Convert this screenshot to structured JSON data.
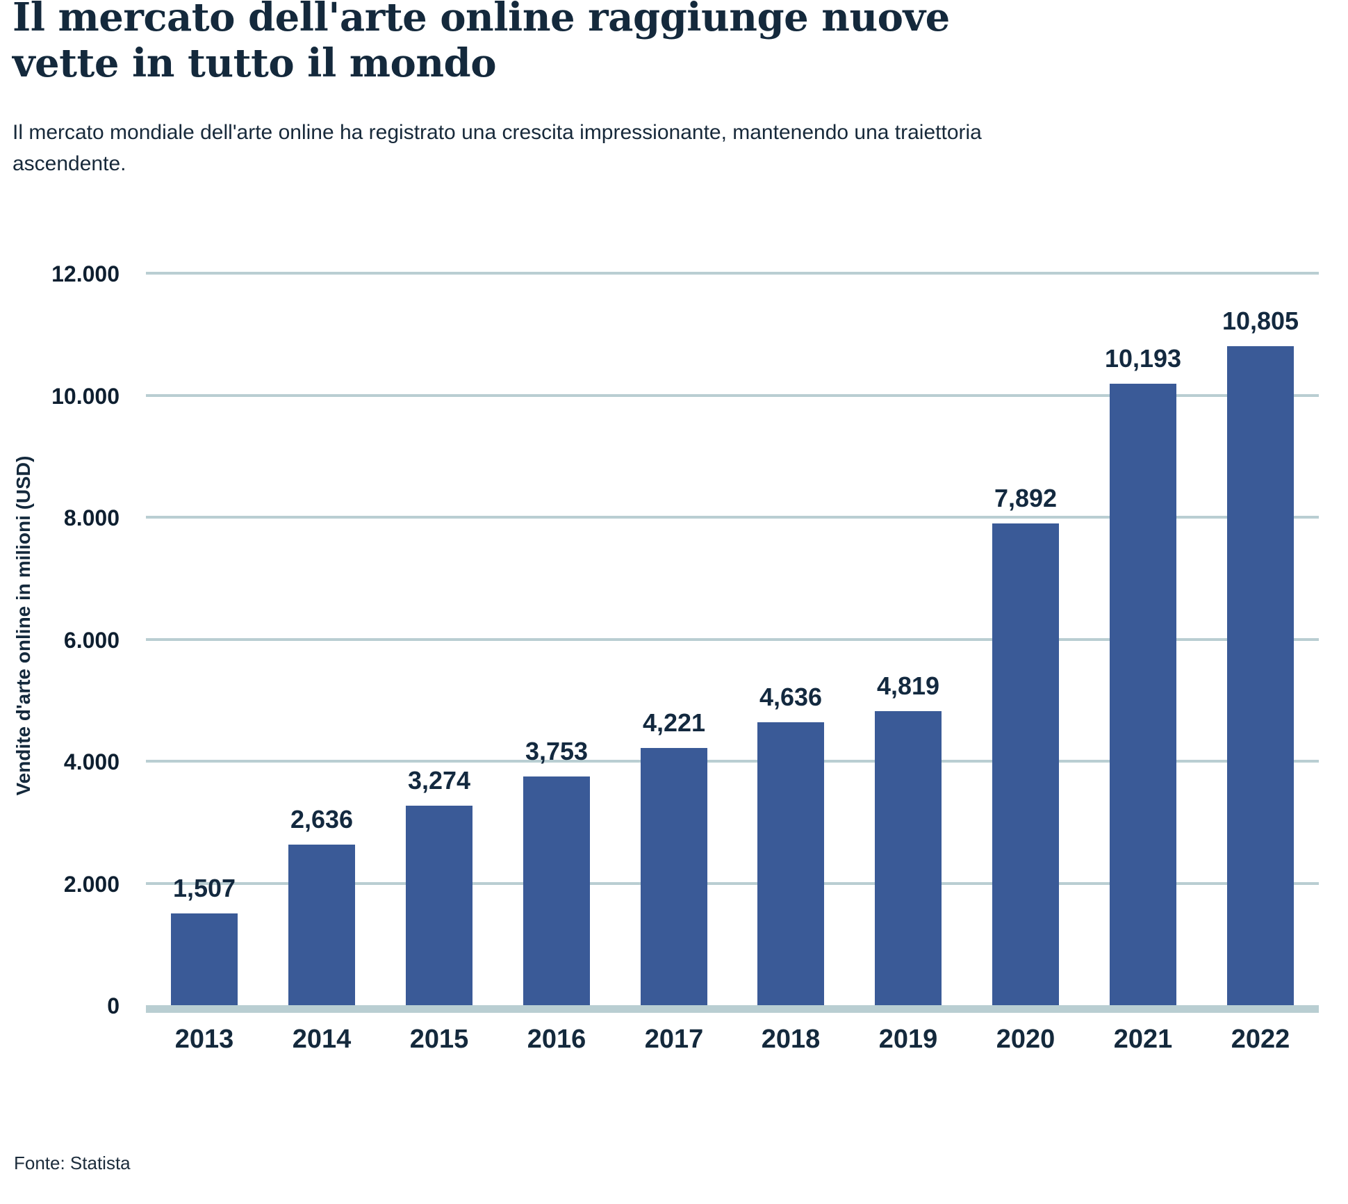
{
  "header": {
    "title": "Il mercato dell'arte online raggiunge nuove vette in tutto il mondo",
    "subtitle": "Il mercato mondiale dell'arte online ha registrato una crescita impressionante, mantenendo una traiettoria ascendente."
  },
  "footer": {
    "source": "Fonte: Statista"
  },
  "colors": {
    "bar": "#3a5a97",
    "grid": "#b9ced2",
    "baseline": "#b9ced2",
    "text_dark": "#14293c"
  },
  "chart_data": {
    "type": "bar",
    "title": "Il mercato dell'arte online raggiunge nuove vette in tutto il mondo",
    "categories": [
      "2013",
      "2014",
      "2015",
      "2016",
      "2017",
      "2018",
      "2019",
      "2020",
      "2021",
      "2022"
    ],
    "values": [
      1507,
      2636,
      3274,
      3753,
      4221,
      4636,
      4819,
      7892,
      10193,
      10805
    ],
    "value_labels": [
      "1,507",
      "2,636",
      "3,274",
      "3,753",
      "4,221",
      "4,636",
      "4,819",
      "7,892",
      "10,193",
      "10,805"
    ],
    "xlabel": "",
    "ylabel": "Vendite d'arte online in milioni (USD)",
    "ylim": [
      0,
      12000
    ],
    "ytick_values": [
      0,
      2000,
      4000,
      6000,
      8000,
      10000,
      12000
    ],
    "ytick_labels": [
      "0",
      "2.000",
      "4.000",
      "6.000",
      "8.000",
      "10.000",
      "12.000"
    ],
    "grid": "horizontal-behind-bars",
    "legend": "none"
  }
}
